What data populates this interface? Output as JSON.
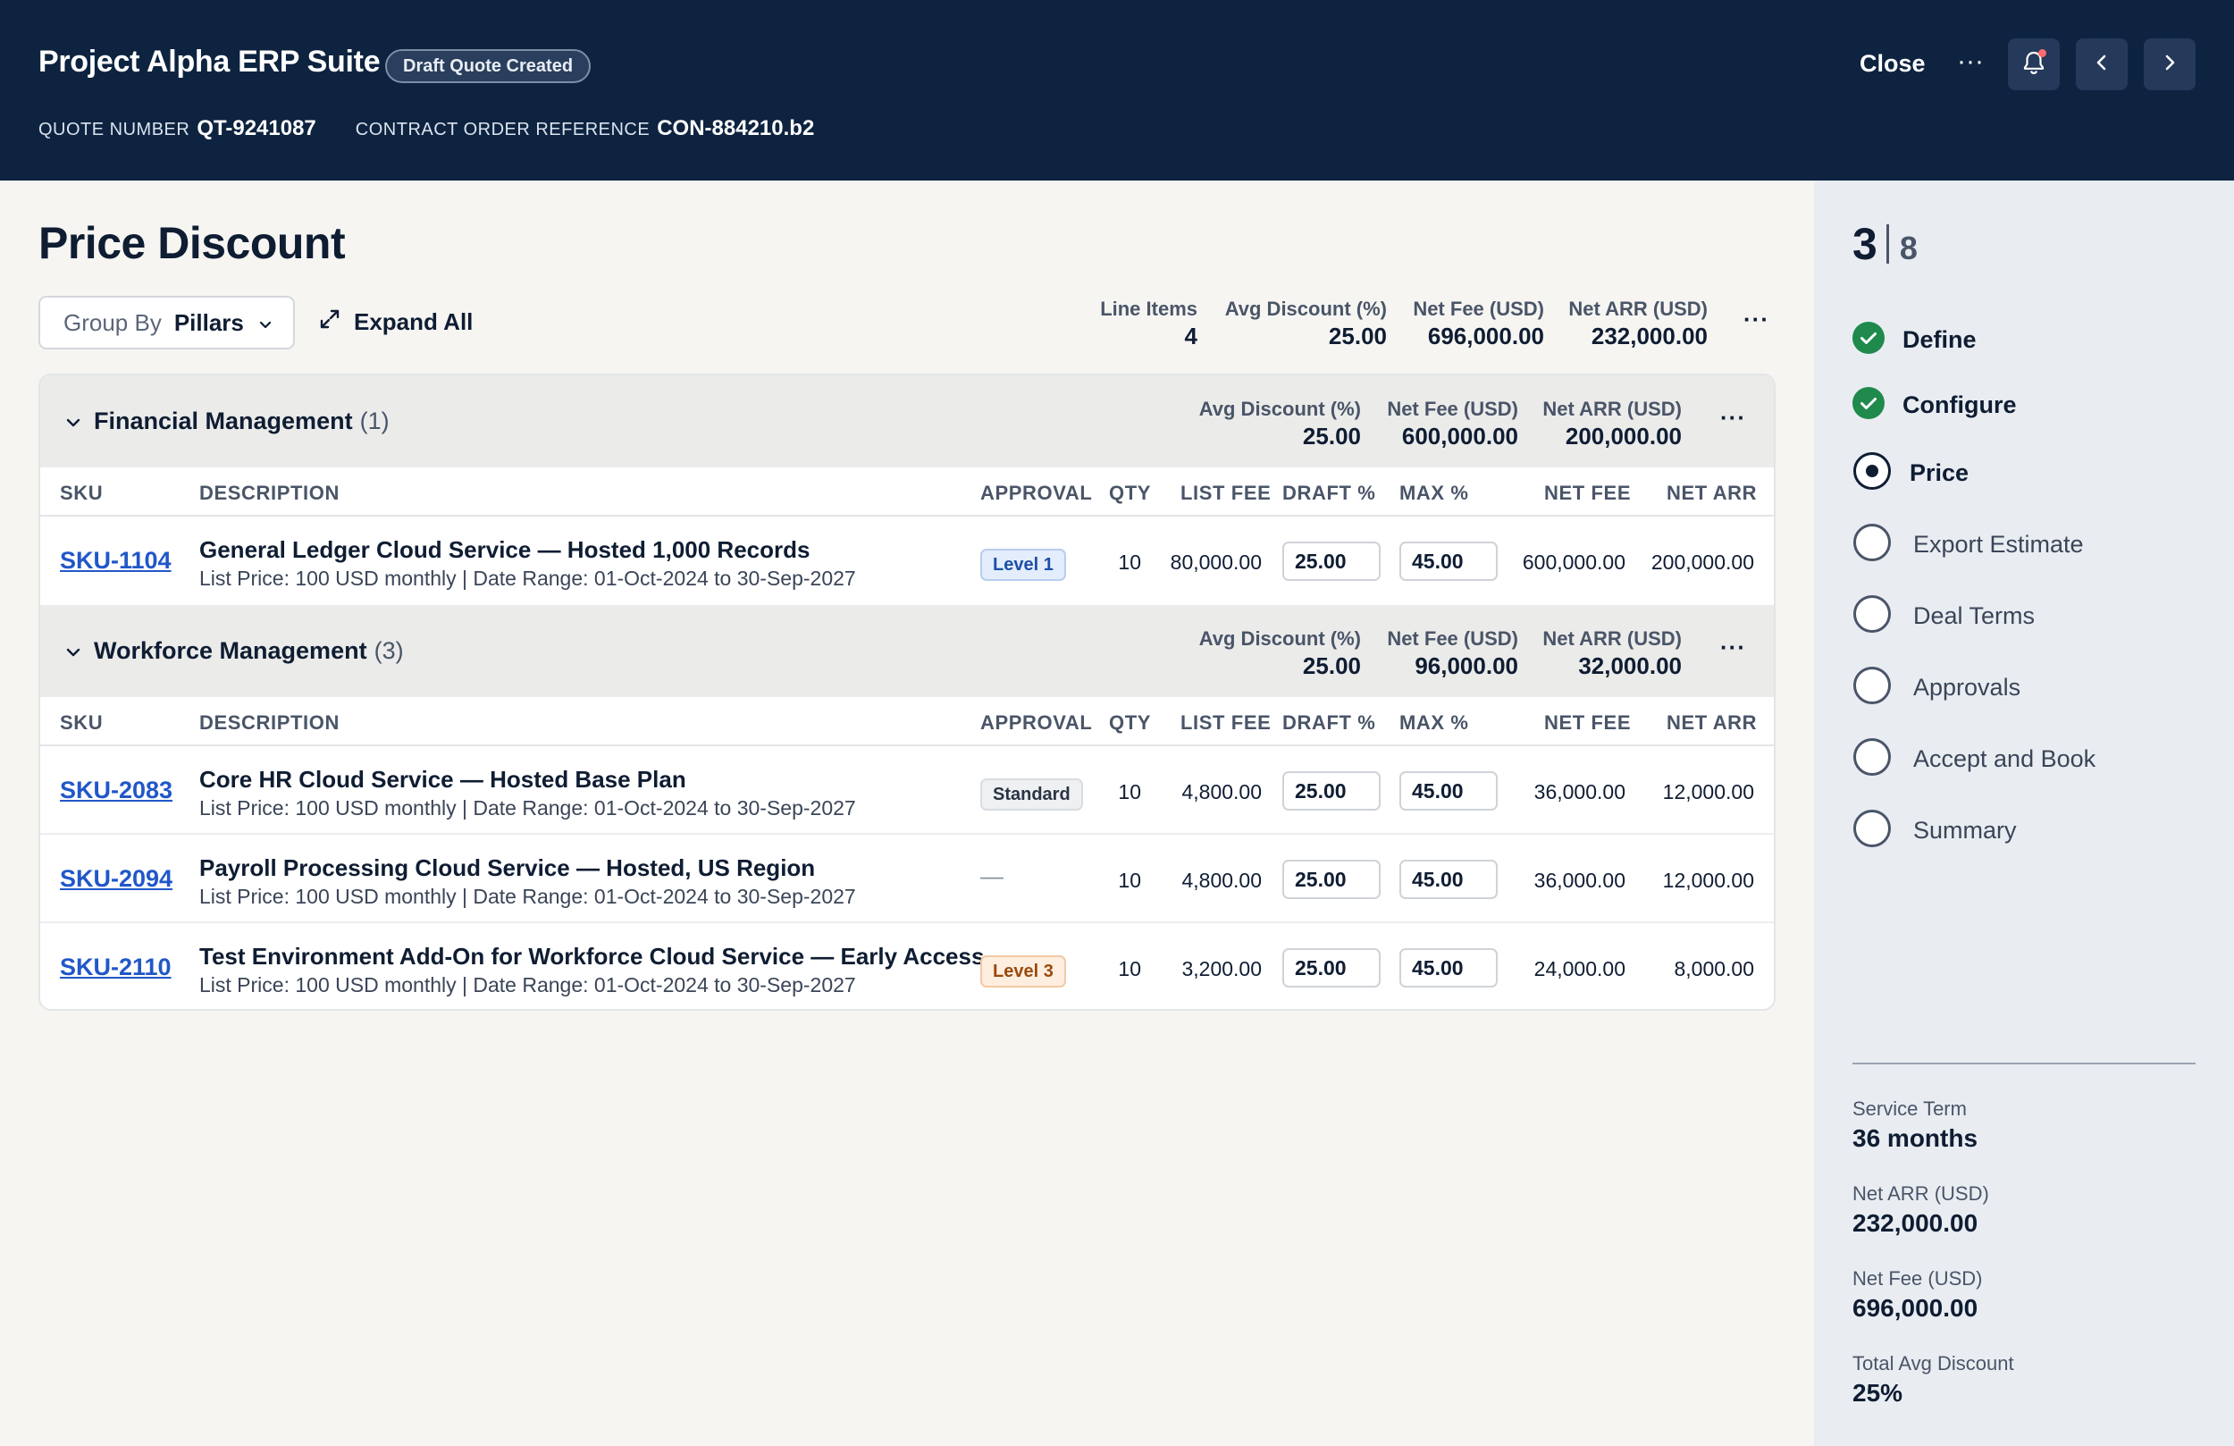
{
  "header": {
    "app_title": "Project Alpha ERP Suite",
    "status": "Draft Quote Created",
    "quote_number_label": "QUOTE NUMBER",
    "quote_number": "QT-9241087",
    "contract_label": "CONTRACT ORDER REFERENCE",
    "contract_ref": "CON-884210.b2",
    "close_label": "Close",
    "more_label": "···"
  },
  "page": {
    "title": "Price Discount",
    "group_by_label": "Group By",
    "group_by_value": "Pillars",
    "expand_all_label": "Expand All",
    "more_label": "···"
  },
  "summary": {
    "line_items_label": "Line Items",
    "line_items": "4",
    "avg_discount_label": "Avg Discount (%)",
    "avg_discount": "25.00",
    "net_fee_label": "Net Fee (USD)",
    "net_fee": "696,000.00",
    "net_arr_label": "Net ARR (USD)",
    "net_arr": "232,000.00"
  },
  "columns": {
    "sku": "SKU",
    "description": "DESCRIPTION",
    "approval": "APPROVAL",
    "qty": "QTY",
    "list_fee": "LIST FEE",
    "draft_pct": "DRAFT %",
    "max_pct": "MAX %",
    "net_fee": "NET FEE",
    "net_arr": "NET ARR"
  },
  "groups": [
    {
      "name": "Financial Management",
      "count": "(1)",
      "avg_discount_label": "Avg Discount (%)",
      "avg_discount": "25.00",
      "net_fee_label": "Net Fee (USD)",
      "net_fee": "600,000.00",
      "net_arr_label": "Net ARR (USD)",
      "net_arr": "200,000.00",
      "rows": [
        {
          "sku": "SKU-1104",
          "title": "General Ledger Cloud Service — Hosted 1,000 Records",
          "subtitle": "List Price: 100 USD monthly | Date Range: 01-Oct-2024 to 30-Sep-2027",
          "approval": "Level 1",
          "qty": "10",
          "list_fee": "80,000.00",
          "draft_pct": "25.00",
          "max_pct": "45.00",
          "net_fee": "600,000.00",
          "net_arr": "200,000.00"
        }
      ]
    },
    {
      "name": "Workforce Management",
      "count": "(3)",
      "avg_discount_label": "Avg Discount (%)",
      "avg_discount": "25.00",
      "net_fee_label": "Net Fee (USD)",
      "net_fee": "96,000.00",
      "net_arr_label": "Net ARR (USD)",
      "net_arr": "32,000.00",
      "rows": [
        {
          "sku": "SKU-2083",
          "title": "Core HR Cloud Service — Hosted Base Plan",
          "subtitle": "List Price: 100 USD monthly | Date Range: 01-Oct-2024 to 30-Sep-2027",
          "approval": "Standard",
          "qty": "10",
          "list_fee": "4,800.00",
          "draft_pct": "25.00",
          "max_pct": "45.00",
          "net_fee": "36,000.00",
          "net_arr": "12,000.00"
        },
        {
          "sku": "SKU-2094",
          "title": "Payroll Processing Cloud Service — Hosted, US Region",
          "subtitle": "List Price: 100 USD monthly | Date Range: 01-Oct-2024 to 30-Sep-2027",
          "approval": "—",
          "qty": "10",
          "list_fee": "4,800.00",
          "draft_pct": "25.00",
          "max_pct": "45.00",
          "net_fee": "36,000.00",
          "net_arr": "12,000.00"
        },
        {
          "sku": "SKU-2110",
          "title": "Test Environment Add-On for Workforce Cloud Service — Early Access",
          "subtitle": "List Price: 100 USD monthly | Date Range: 01-Oct-2024 to 30-Sep-2027",
          "approval": "Level 3",
          "qty": "10",
          "list_fee": "3,200.00",
          "draft_pct": "25.00",
          "max_pct": "45.00",
          "net_fee": "24,000.00",
          "net_arr": "8,000.00"
        }
      ]
    }
  ],
  "sidebar": {
    "current_step": "3",
    "total_steps": "8",
    "steps": [
      {
        "label": "Define",
        "state": "done"
      },
      {
        "label": "Configure",
        "state": "done"
      },
      {
        "label": "Price",
        "state": "current"
      },
      {
        "label": "Export Estimate",
        "state": "todo"
      },
      {
        "label": "Deal Terms",
        "state": "todo"
      },
      {
        "label": "Approvals",
        "state": "todo"
      },
      {
        "label": "Accept and Book",
        "state": "todo"
      },
      {
        "label": "Summary",
        "state": "todo"
      }
    ],
    "stats": [
      {
        "label": "Service Term",
        "value": "36 months"
      },
      {
        "label": "Net ARR (USD)",
        "value": "232,000.00"
      },
      {
        "label": "Net Fee (USD)",
        "value": "696,000.00"
      },
      {
        "label": "Total Avg Discount",
        "value": "25%"
      }
    ]
  },
  "colors": {
    "header_bg": "#0d2340",
    "sidebar_bg": "#e9edf2",
    "page_bg": "#f6f5f2",
    "link": "#2157c8",
    "done_green": "#1f8a4c"
  },
  "icons": [
    "bell-icon",
    "chevron-left-icon",
    "chevron-right-icon",
    "chevron-down-icon",
    "expand-icon",
    "check-circle-icon",
    "radio-selected-icon",
    "radio-empty-icon"
  ]
}
